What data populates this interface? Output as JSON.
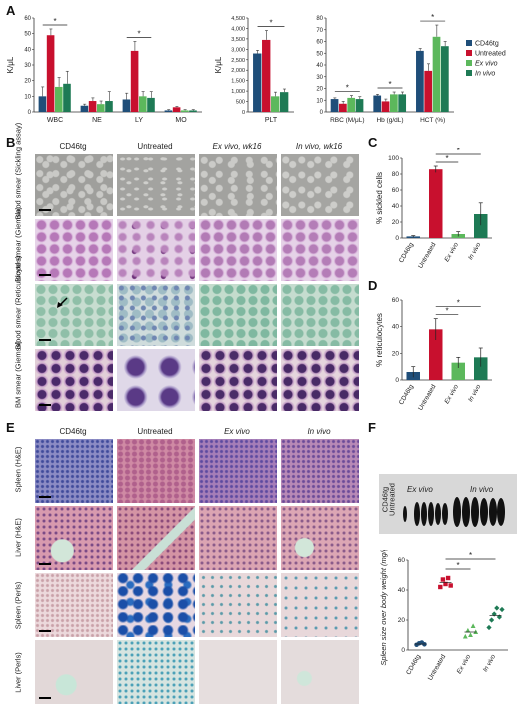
{
  "colors": {
    "cd46tg": "#1f4e79",
    "untreated": "#c8102e",
    "ex_vivo": "#5cb85c",
    "in_vivo": "#1e7a55"
  },
  "panel_labels": {
    "a": "A",
    "b": "B",
    "c": "C",
    "d": "D",
    "e": "E",
    "f": "F"
  },
  "panelA": {
    "ylabel": "K/μL",
    "legend": [
      "CD46tg",
      "Untreated",
      "Ex vivo",
      "In vivo"
    ]
  },
  "panelB": {
    "columns": [
      "CD46tg",
      "Untreated",
      "Ex vivo, wk16",
      "In vivo, wk16"
    ],
    "rows": [
      "Blood smear (Sickling assay)",
      "Blood smear (Giemsa)",
      "Blood smear (Reticulocytes)",
      "BM smear (Giemsa)"
    ]
  },
  "panelE": {
    "columns": [
      "CD46tg",
      "Untreated",
      "Ex vivo",
      "In vivo"
    ],
    "rows": [
      "Spleen (H&E)",
      "Liver (H&E)",
      "Spleen (Perls)",
      "Liver (Perls)"
    ]
  },
  "panelF": {
    "photo_labels": [
      "CD46tg",
      "Untreated",
      "Ex vivo",
      "In vivo"
    ]
  },
  "sig_mark": "*",
  "chart_data": [
    {
      "id": "A1",
      "type": "bar",
      "categories": [
        "WBC",
        "NE",
        "LY",
        "MO"
      ],
      "ylabel": "K/μL",
      "ylim": [
        0,
        60
      ],
      "yticks": [
        0,
        10,
        20,
        30,
        40,
        50,
        60
      ],
      "series": [
        {
          "name": "CD46tg",
          "values": [
            10,
            4,
            8,
            1
          ]
        },
        {
          "name": "Untreated",
          "values": [
            49,
            7,
            39,
            3
          ]
        },
        {
          "name": "Ex vivo",
          "values": [
            16,
            5,
            10,
            1
          ]
        },
        {
          "name": "In vivo",
          "values": [
            18,
            7,
            9,
            1
          ]
        }
      ],
      "errors": [
        [
          6,
          1,
          4,
          0.5
        ],
        [
          4,
          2,
          6,
          0.5
        ],
        [
          6,
          2,
          3,
          0.5
        ],
        [
          8,
          6,
          4,
          0.5
        ]
      ],
      "significance": [
        {
          "category": "WBC"
        },
        {
          "category": "LY"
        }
      ]
    },
    {
      "id": "A2",
      "type": "bar",
      "categories": [
        "PLT"
      ],
      "ylabel": "K/μL",
      "ylim": [
        0,
        4500
      ],
      "yticks": [
        0,
        500,
        1000,
        1500,
        2000,
        2500,
        3000,
        3500,
        4000,
        4500
      ],
      "ytick_labels": [
        "0",
        "500",
        "1,000",
        "1,500",
        "2,000",
        "2,500",
        "3,000",
        "3,500",
        "4,000",
        "4,500"
      ],
      "series": [
        {
          "name": "CD46tg",
          "values": [
            2800
          ]
        },
        {
          "name": "Untreated",
          "values": [
            3450
          ]
        },
        {
          "name": "Ex vivo",
          "values": [
            750
          ]
        },
        {
          "name": "In vivo",
          "values": [
            950
          ]
        }
      ],
      "errors": [
        [
          150
        ],
        [
          450
        ],
        [
          200
        ],
        [
          150
        ]
      ],
      "significance": [
        {
          "category": "PLT"
        }
      ]
    },
    {
      "id": "A3",
      "type": "bar",
      "categories": [
        "RBC (M/μL)",
        "Hb (g/dL)",
        "HCT (%)"
      ],
      "ylim": [
        0,
        80
      ],
      "yticks": [
        0,
        10,
        20,
        30,
        40,
        50,
        60,
        70,
        80
      ],
      "series": [
        {
          "name": "CD46tg",
          "values": [
            11,
            14,
            52
          ]
        },
        {
          "name": "Untreated",
          "values": [
            7,
            9,
            35
          ]
        },
        {
          "name": "Ex vivo",
          "values": [
            12,
            15,
            64
          ]
        },
        {
          "name": "In vivo",
          "values": [
            11,
            15,
            56
          ]
        }
      ],
      "errors": [
        [
          1,
          1,
          2
        ],
        [
          2,
          2,
          6
        ],
        [
          2,
          2,
          10
        ],
        [
          2,
          2,
          4
        ]
      ],
      "significance": [
        {
          "category": "RBC (M/μL)"
        },
        {
          "category": "Hb (g/dL)"
        },
        {
          "category": "HCT (%)"
        }
      ],
      "legend_position": "top-right"
    },
    {
      "id": "C",
      "type": "bar",
      "categories": [
        "CD46tg",
        "Untreated",
        "Ex vivo",
        "In vivo"
      ],
      "ylabel": "% sickled cells",
      "ylim": [
        0,
        100
      ],
      "yticks": [
        0,
        20,
        40,
        60,
        80,
        100
      ],
      "values": [
        2,
        86,
        5,
        30
      ],
      "errors": [
        1,
        4,
        3,
        14
      ]
    },
    {
      "id": "D",
      "type": "bar",
      "categories": [
        "CD46tg",
        "Untreated",
        "Ex vivo",
        "In vivo"
      ],
      "ylabel": "% reticulocytes",
      "ylim": [
        0,
        60
      ],
      "yticks": [
        0,
        20,
        40,
        60
      ],
      "values": [
        6,
        38,
        13,
        17
      ],
      "errors": [
        4,
        8,
        4,
        7
      ]
    },
    {
      "id": "F",
      "type": "scatter",
      "categories": [
        "CD46tg",
        "Untreated",
        "Ex vivo",
        "In vivo"
      ],
      "ylabel": "Spleen size over body weight (mg/g)",
      "ylim": [
        0,
        60
      ],
      "yticks": [
        0,
        20,
        40,
        60
      ],
      "points": [
        [
          3.5,
          4.5,
          5,
          3.8
        ],
        [
          42,
          47,
          44,
          48,
          43
        ],
        [
          9,
          13,
          10,
          16,
          12
        ],
        [
          15,
          20,
          24,
          28,
          22,
          27
        ]
      ],
      "means": [
        4,
        45,
        12,
        23
      ]
    }
  ]
}
